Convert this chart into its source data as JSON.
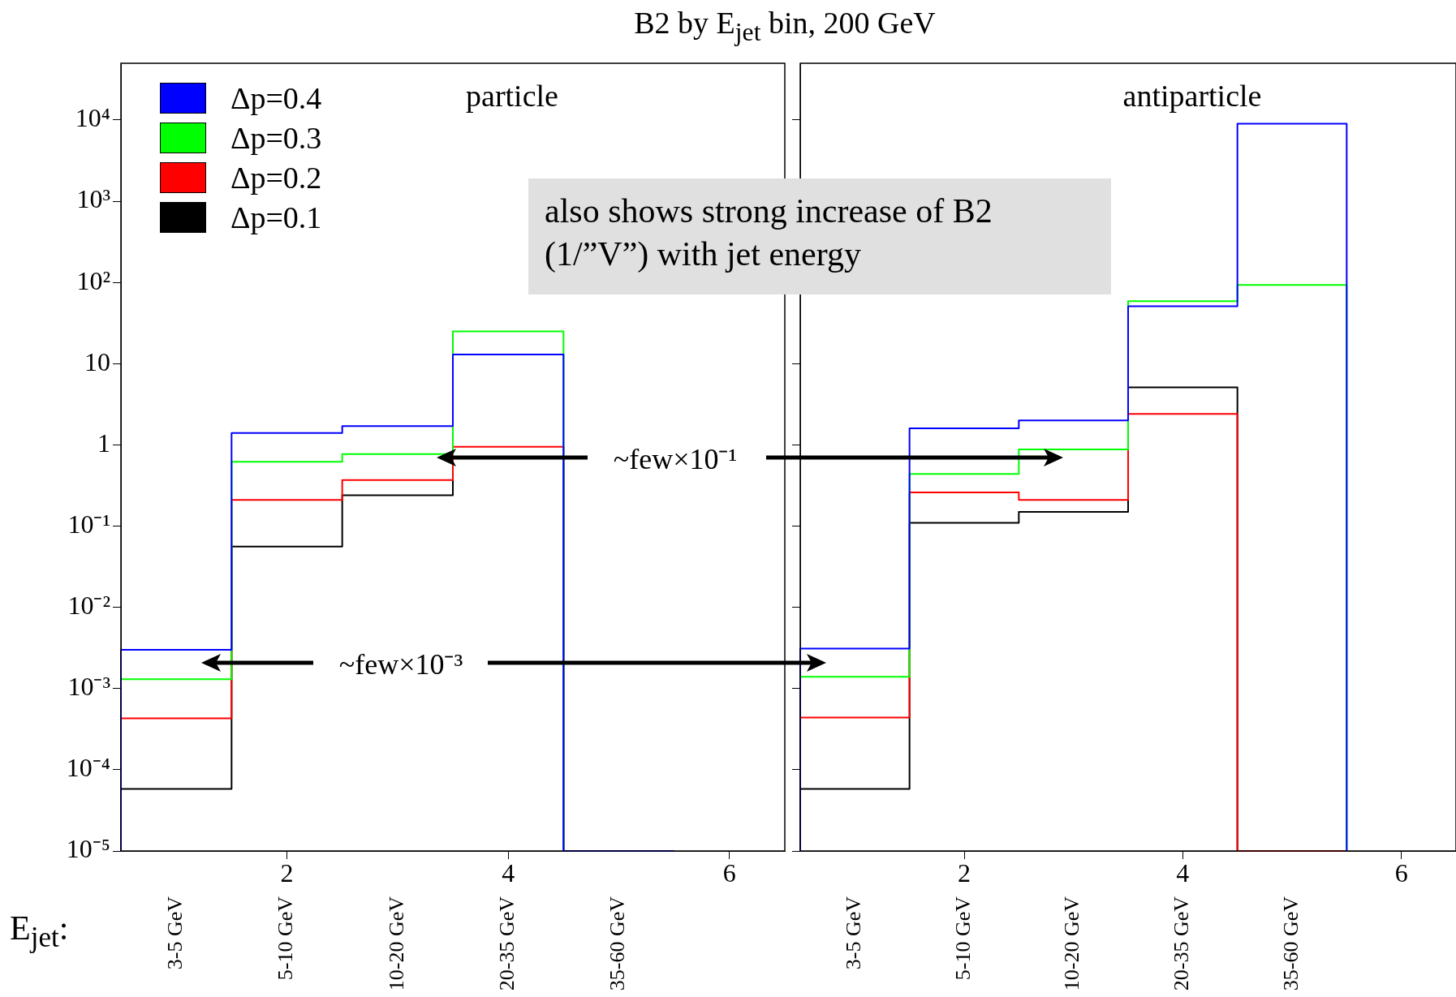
{
  "chart_data": [
    {
      "type": "histogram",
      "title": "B2 by E$_{jet}$ bin, 200 GeV",
      "xlabel": "E$_{jet}$:",
      "bins": [
        0.5,
        1.5,
        2.5,
        3.5,
        4.5,
        5.5
      ],
      "xlim": [
        0.5,
        6.5
      ],
      "xticks": [
        2,
        4,
        6
      ],
      "categories": [
        "3-5 GeV",
        "5-10 GeV",
        "10-20 GeV",
        "20-35 GeV",
        "35-60 GeV"
      ],
      "ylim": [
        1e-05,
        50000
      ],
      "yticks": [
        {
          "value": 1e-05,
          "label": "10⁻⁵"
        },
        {
          "value": 0.0001,
          "label": "10⁻⁴"
        },
        {
          "value": 0.001,
          "label": "10⁻³"
        },
        {
          "value": 0.01,
          "label": "10⁻²"
        },
        {
          "value": 0.1,
          "label": "10⁻¹"
        },
        1,
        10,
        {
          "value": 100,
          "label": "10²"
        },
        {
          "value": 1000,
          "label": "10³"
        },
        {
          "value": 10000,
          "label": "10⁴"
        }
      ],
      "log": true,
      "legend": "top left",
      "annotations": [
        "particle",
        "also shows strong increase of B2 (1/”V”) with jet energy",
        "~few×10⁻¹",
        "~few×10⁻³"
      ],
      "series": [
        {
          "name": "Δp=0.4",
          "color": "#0000ff",
          "values": [
            0.003,
            1.4,
            1.7,
            13,
            null
          ]
        },
        {
          "name": "Δp=0.3",
          "color": "#00ff00",
          "values": [
            0.0013,
            0.62,
            0.77,
            25,
            null
          ]
        },
        {
          "name": "Δp=0.2",
          "color": "#ff0000",
          "values": [
            0.00043,
            0.21,
            0.37,
            0.95,
            null
          ]
        },
        {
          "name": "Δp=0.1",
          "color": "#000000",
          "values": [
            5.8e-05,
            0.056,
            0.24,
            0.7,
            null
          ]
        }
      ]
    },
    {
      "type": "histogram",
      "bins": [
        0.5,
        1.5,
        2.5,
        3.5,
        4.5,
        5.5
      ],
      "xlim": [
        0.5,
        6.5
      ],
      "xticks": [
        2,
        4,
        6
      ],
      "categories": [
        "3-5 GeV",
        "5-10 GeV",
        "10-20 GeV",
        "20-35 GeV",
        "35-60 GeV"
      ],
      "ylim": [
        1e-05,
        50000
      ],
      "yticks": [
        {
          "value": 1e-05,
          "label": null
        },
        {
          "value": 0.0001,
          "label": null
        },
        {
          "value": 0.001,
          "label": null
        },
        {
          "value": 0.01,
          "label": null
        },
        {
          "value": 0.1,
          "label": null
        },
        {
          "value": 1,
          "label": null
        },
        {
          "value": 10,
          "label": null
        },
        {
          "value": 100,
          "label": null
        },
        {
          "value": 1000,
          "label": null
        },
        {
          "value": 10000,
          "label": null
        }
      ],
      "log": true,
      "tick_labels": "x",
      "annotations": [
        "antiparticle"
      ],
      "series": [
        {
          "color": "#0000ff",
          "values": [
            0.0031,
            1.6,
            2.0,
            51,
            9000
          ]
        },
        {
          "color": "#00ff00",
          "values": [
            0.0014,
            0.44,
            0.88,
            59,
            93
          ]
        },
        {
          "color": "#ff0000",
          "values": [
            0.00044,
            0.26,
            0.21,
            2.4,
            null
          ]
        },
        {
          "color": "#000000",
          "values": [
            5.8e-05,
            0.11,
            0.15,
            5.1,
            null
          ]
        }
      ]
    }
  ]
}
